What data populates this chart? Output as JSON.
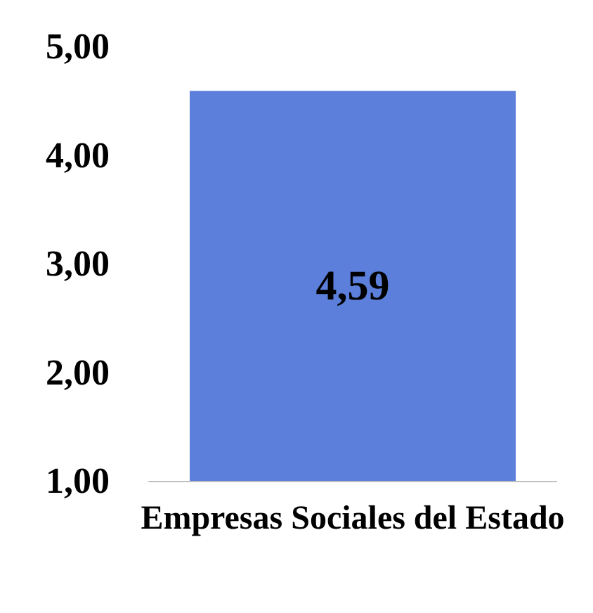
{
  "chart_data": {
    "type": "bar",
    "categories": [
      "Empresas Sociales del Estado"
    ],
    "values": [
      4.59
    ],
    "value_labels": [
      "4,59"
    ],
    "color": "#5b7fdb",
    "ylim": [
      1,
      5
    ],
    "yticks": [
      {
        "value": 1,
        "label": "1,00"
      },
      {
        "value": 2,
        "label": "2,00"
      },
      {
        "value": 3,
        "label": "3,00"
      },
      {
        "value": 4,
        "label": "4,00"
      },
      {
        "value": 5,
        "label": "5,00"
      }
    ],
    "grid": false
  }
}
